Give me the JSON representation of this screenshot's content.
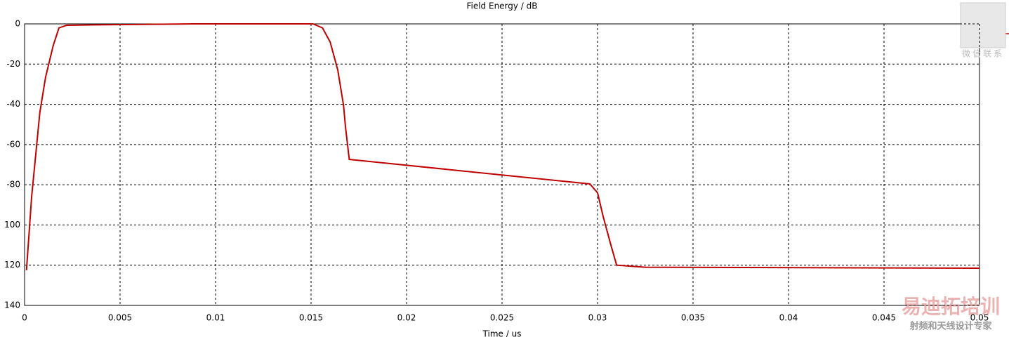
{
  "chart_data": {
    "type": "line",
    "title": "Field Energy / dB",
    "x_label": "Time / us",
    "x": [
      0.0001,
      0.00037,
      0.00055,
      0.0008,
      0.0011,
      0.0015,
      0.0018,
      0.0022,
      0.0037,
      0.0088,
      0.0151,
      0.0156,
      0.016,
      0.0164,
      0.0167,
      0.0168,
      0.017,
      0.0296,
      0.03,
      0.0303,
      0.0307,
      0.031,
      0.0325,
      0.0392,
      0.05
    ],
    "values": [
      -122.5,
      -86,
      -68.4,
      -44,
      -26.5,
      -10.8,
      -2,
      -0.7,
      -0.5,
      0,
      0,
      -2,
      -9,
      -23,
      -40.5,
      -51,
      -67.4,
      -79.6,
      -84,
      -96,
      -110,
      -120,
      -121,
      -121.2,
      -121.5
    ],
    "color": "#c00000",
    "xlim": [
      0,
      0.05
    ],
    "xticks": [
      0,
      0.005,
      0.01,
      0.015,
      0.02,
      0.025,
      0.03,
      0.035,
      0.04,
      0.045,
      0.05
    ],
    "ylim": [
      -140,
      0
    ],
    "yticks": [
      0,
      -20,
      -40,
      -60,
      -80,
      {
        "value": -100,
        "label": "100"
      },
      {
        "value": -120,
        "label": "120"
      },
      {
        "value": -140,
        "label": "140"
      }
    ],
    "grid": true
  },
  "watermarks": {
    "contact": "微信联系",
    "brand": "易迪拓培训",
    "slogan": "射频和天线设计专家"
  }
}
